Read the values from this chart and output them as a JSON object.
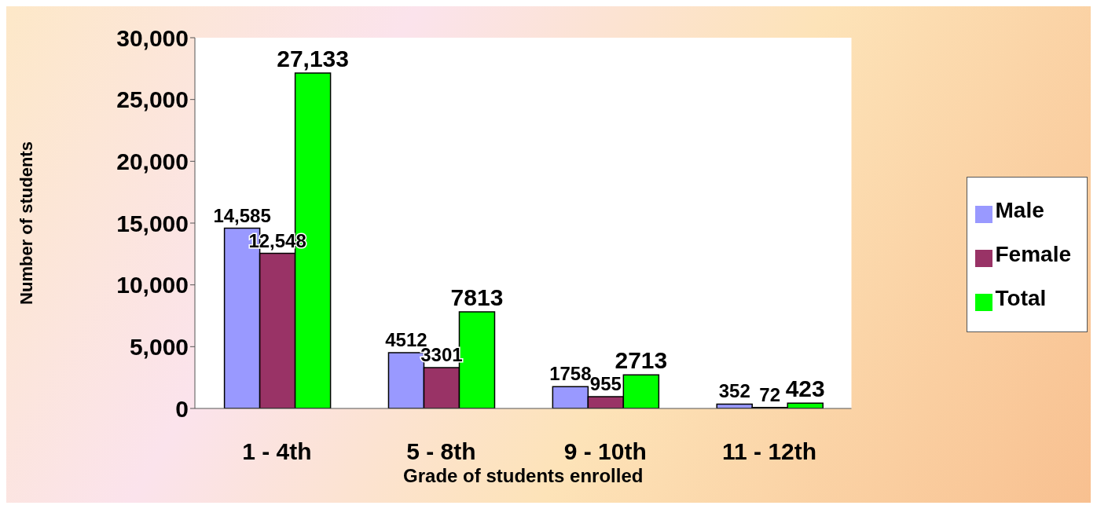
{
  "chart_data": {
    "type": "bar",
    "xlabel": "Grade of students enrolled",
    "ylabel": "Number of students",
    "categories": [
      "1 - 4th",
      "5 - 8th",
      "9 - 10th",
      "11 - 12th"
    ],
    "series": [
      {
        "name": "Male",
        "color": "#9999ff",
        "values": [
          14585,
          4512,
          1758,
          352
        ],
        "value_labels": [
          "14,585",
          "4512",
          "1758",
          "352"
        ]
      },
      {
        "name": "Female",
        "color": "#993366",
        "values": [
          12548,
          3301,
          955,
          72
        ],
        "value_labels": [
          "12,548",
          "3301",
          "955",
          "72"
        ]
      },
      {
        "name": "Total",
        "color": "#00ff00",
        "values": [
          27133,
          7813,
          2713,
          423
        ],
        "value_labels": [
          "27,133",
          "7813",
          "2713",
          "423"
        ]
      }
    ],
    "ylim": [
      0,
      30000
    ],
    "yticks": [
      {
        "value": 0,
        "label": "0"
      },
      {
        "value": 5000,
        "label": "5,000"
      },
      {
        "value": 10000,
        "label": "10,000"
      },
      {
        "value": 15000,
        "label": "15,000"
      },
      {
        "value": 20000,
        "label": "20,000"
      },
      {
        "value": 25000,
        "label": "25,000"
      },
      {
        "value": 30000,
        "label": "30,000"
      }
    ],
    "legend": "right"
  }
}
